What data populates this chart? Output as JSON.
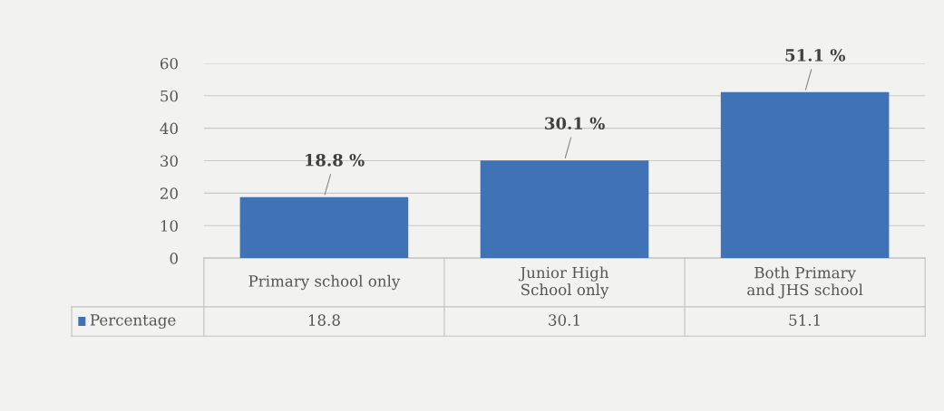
{
  "chart_data": {
    "type": "bar",
    "categories": [
      "Primary school only",
      "Junior High School only",
      "Both Primary and JHS school"
    ],
    "series": [
      {
        "name": "Percentage",
        "color": "#3f73b5",
        "values": [
          18.8,
          30.1,
          51.1
        ]
      }
    ],
    "annotations": [
      {
        "text": "18.8 %",
        "x": "Primary school only",
        "y": 18.8
      },
      {
        "text": "30.1 %",
        "x": "Junior High School only",
        "y": 30.1
      },
      {
        "text": "51.1 %",
        "x": "Both Primary and JHS school",
        "y": 51.1
      }
    ],
    "ylim": [
      0,
      60
    ],
    "yticks": [
      0,
      10,
      20,
      30,
      40,
      50,
      60
    ],
    "grid": "y",
    "data_labels": true,
    "legend": "bottom left"
  }
}
